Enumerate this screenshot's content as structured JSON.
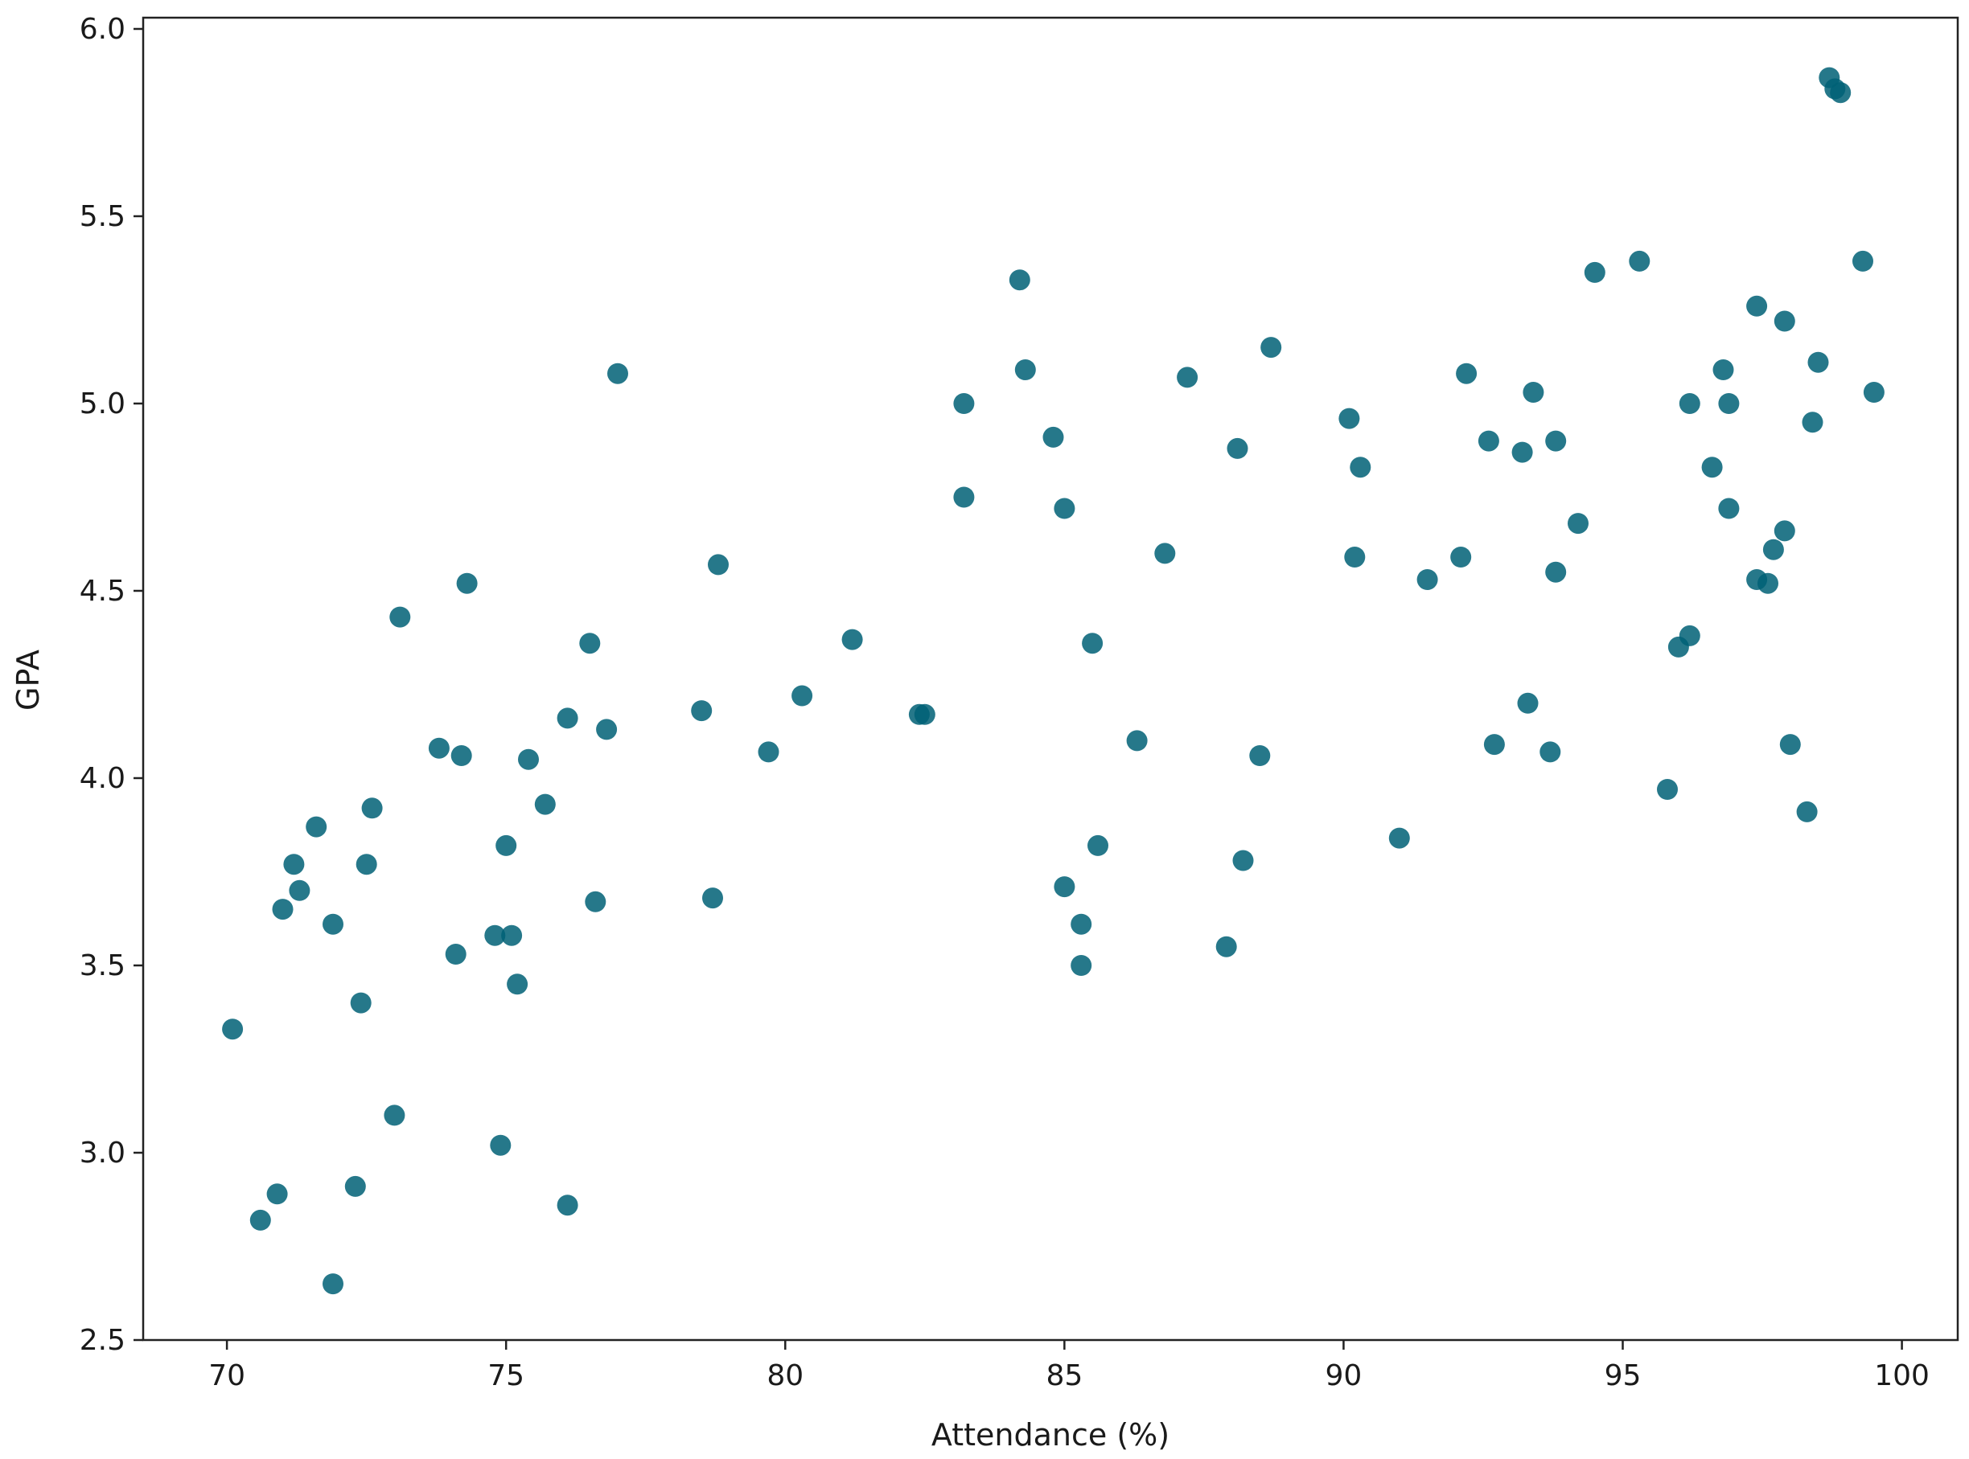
{
  "chart_data": {
    "type": "scatter",
    "title": "",
    "xlabel": "Attendance (%)",
    "ylabel": "GPA",
    "xlim": [
      68.5,
      101.0
    ],
    "ylim": [
      2.5,
      6.03
    ],
    "xticks": [
      70,
      75,
      80,
      85,
      90,
      95,
      100
    ],
    "yticks": [
      2.5,
      3.0,
      3.5,
      4.0,
      4.5,
      5.0,
      5.5,
      6.0
    ],
    "xtick_labels": [
      "70",
      "75",
      "80",
      "85",
      "90",
      "95",
      "100"
    ],
    "ytick_labels": [
      "2.5",
      "3.0",
      "3.5",
      "4.0",
      "4.5",
      "5.0",
      "5.5",
      "6.0"
    ],
    "grid": false,
    "marker_color": "#006076",
    "marker_opacity": 0.85,
    "points": [
      [
        70.1,
        3.33
      ],
      [
        70.6,
        2.82
      ],
      [
        70.9,
        2.89
      ],
      [
        71.0,
        3.65
      ],
      [
        71.2,
        3.77
      ],
      [
        71.3,
        3.7
      ],
      [
        71.6,
        3.87
      ],
      [
        71.9,
        2.65
      ],
      [
        71.9,
        3.61
      ],
      [
        72.3,
        2.91
      ],
      [
        72.4,
        3.4
      ],
      [
        72.5,
        3.77
      ],
      [
        72.6,
        3.92
      ],
      [
        73.0,
        3.1
      ],
      [
        73.1,
        4.43
      ],
      [
        73.8,
        4.08
      ],
      [
        74.1,
        3.53
      ],
      [
        74.2,
        4.06
      ],
      [
        74.3,
        4.52
      ],
      [
        74.8,
        3.58
      ],
      [
        74.9,
        3.02
      ],
      [
        75.0,
        3.82
      ],
      [
        75.1,
        3.58
      ],
      [
        75.2,
        3.45
      ],
      [
        75.4,
        4.05
      ],
      [
        75.7,
        3.93
      ],
      [
        76.1,
        2.86
      ],
      [
        76.1,
        4.16
      ],
      [
        76.5,
        4.36
      ],
      [
        76.6,
        3.67
      ],
      [
        76.8,
        4.13
      ],
      [
        77.0,
        5.08
      ],
      [
        78.5,
        4.18
      ],
      [
        78.7,
        3.68
      ],
      [
        78.8,
        4.57
      ],
      [
        79.7,
        4.07
      ],
      [
        80.3,
        4.22
      ],
      [
        81.2,
        4.37
      ],
      [
        82.4,
        4.17
      ],
      [
        82.5,
        4.17
      ],
      [
        83.2,
        4.75
      ],
      [
        83.2,
        5.0
      ],
      [
        84.2,
        5.33
      ],
      [
        84.3,
        5.09
      ],
      [
        84.8,
        4.91
      ],
      [
        85.0,
        3.71
      ],
      [
        85.0,
        4.72
      ],
      [
        85.3,
        3.61
      ],
      [
        85.3,
        3.5
      ],
      [
        85.5,
        4.36
      ],
      [
        85.6,
        3.82
      ],
      [
        86.3,
        4.1
      ],
      [
        86.8,
        4.6
      ],
      [
        87.2,
        5.07
      ],
      [
        87.9,
        3.55
      ],
      [
        88.1,
        4.88
      ],
      [
        88.2,
        3.78
      ],
      [
        88.5,
        4.06
      ],
      [
        88.7,
        5.15
      ],
      [
        90.1,
        4.96
      ],
      [
        90.2,
        4.59
      ],
      [
        90.3,
        4.83
      ],
      [
        91.0,
        3.84
      ],
      [
        91.5,
        4.53
      ],
      [
        92.1,
        4.59
      ],
      [
        92.2,
        5.08
      ],
      [
        92.6,
        4.9
      ],
      [
        92.7,
        4.09
      ],
      [
        93.2,
        4.87
      ],
      [
        93.3,
        4.2
      ],
      [
        93.4,
        5.03
      ],
      [
        93.7,
        4.07
      ],
      [
        93.8,
        4.55
      ],
      [
        93.8,
        4.9
      ],
      [
        94.2,
        4.68
      ],
      [
        94.5,
        5.35
      ],
      [
        95.3,
        5.38
      ],
      [
        95.8,
        3.97
      ],
      [
        96.0,
        4.35
      ],
      [
        96.2,
        4.38
      ],
      [
        96.2,
        5.0
      ],
      [
        96.6,
        4.83
      ],
      [
        96.8,
        5.09
      ],
      [
        96.9,
        4.72
      ],
      [
        96.9,
        5.0
      ],
      [
        97.4,
        5.26
      ],
      [
        97.4,
        4.53
      ],
      [
        97.6,
        4.52
      ],
      [
        97.7,
        4.61
      ],
      [
        97.9,
        4.66
      ],
      [
        97.9,
        5.22
      ],
      [
        98.0,
        4.09
      ],
      [
        98.3,
        3.91
      ],
      [
        98.4,
        4.95
      ],
      [
        98.5,
        5.11
      ],
      [
        98.7,
        5.87
      ],
      [
        98.8,
        5.84
      ],
      [
        98.9,
        5.83
      ],
      [
        99.3,
        5.38
      ],
      [
        99.5,
        5.03
      ]
    ]
  }
}
